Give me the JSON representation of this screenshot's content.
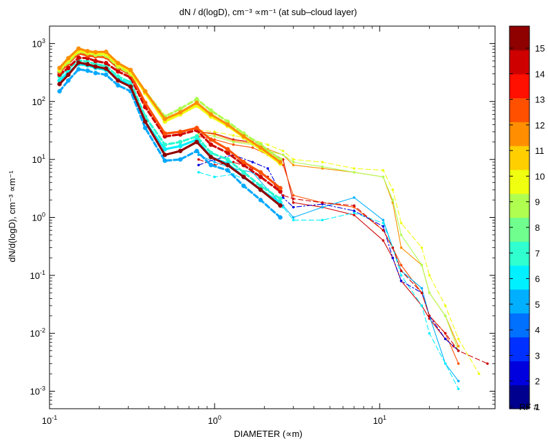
{
  "chart_data": {
    "type": "line",
    "title": "dN / d(logD), cm⁻³ ∝m⁻¹ (at sub–cloud layer)",
    "xlabel": "DIAMETER (∝m)",
    "ylabel": "dN/d(logD), cm⁻³ ∝m⁻¹",
    "xscale": "log",
    "yscale": "log",
    "xlim": [
      0.1,
      50
    ],
    "ylim": [
      0.0005,
      2000
    ],
    "xticks": [
      {
        "value": 0.1,
        "base": "10",
        "exp": "-1"
      },
      {
        "value": 1,
        "base": "10",
        "exp": "0"
      },
      {
        "value": 10,
        "base": "10",
        "exp": "1"
      }
    ],
    "yticks": [
      {
        "value": 0.001,
        "base": "10",
        "exp": "-3"
      },
      {
        "value": 0.01,
        "base": "10",
        "exp": "-2"
      },
      {
        "value": 0.1,
        "base": "10",
        "exp": "-1"
      },
      {
        "value": 1,
        "base": "10",
        "exp": "0"
      },
      {
        "value": 10,
        "base": "10",
        "exp": "1"
      },
      {
        "value": 100,
        "base": "10",
        "exp": "2"
      },
      {
        "value": 1000,
        "base": "10",
        "exp": "3"
      }
    ],
    "grid": false,
    "colorbar": {
      "label": "RF #",
      "ticks": [
        "1",
        "2",
        "3",
        "4",
        "5",
        "6",
        "7",
        "8",
        "9",
        "10",
        "11",
        "12",
        "13",
        "14",
        "15"
      ],
      "colors": [
        "#00008f",
        "#0000df",
        "#0030ff",
        "#0070ff",
        "#00b0ff",
        "#00f0ff",
        "#30ffcf",
        "#70ff8f",
        "#b0ff50",
        "#f0ff10",
        "#ffcf00",
        "#ff8f00",
        "#ff5000",
        "#ff1000",
        "#cf0000",
        "#8f0000"
      ]
    },
    "small_particle_series": [
      {
        "rf": 1,
        "color": "#00a8ff",
        "style": "dash",
        "x": [
          0.115,
          0.13,
          0.15,
          0.17,
          0.19,
          0.22,
          0.26,
          0.31,
          0.38,
          0.5,
          0.62,
          0.78,
          0.95,
          1.2,
          1.5,
          1.9,
          2.5
        ],
        "y": [
          150,
          230,
          360,
          340,
          310,
          290,
          190,
          150,
          35,
          9.5,
          10,
          14,
          8,
          6.5,
          3.5,
          2,
          1.0
        ]
      },
      {
        "rf": 2,
        "color": "#00f0ff",
        "style": "solid",
        "x": [
          0.115,
          0.13,
          0.15,
          0.17,
          0.19,
          0.22,
          0.26,
          0.31,
          0.38,
          0.5,
          0.62,
          0.78,
          0.95,
          1.2,
          1.5,
          1.9,
          2.5
        ],
        "y": [
          230,
          320,
          440,
          420,
          380,
          350,
          250,
          190,
          45,
          15,
          17,
          22,
          11,
          8.5,
          5,
          3,
          1.8
        ]
      },
      {
        "rf": 3,
        "color": "#2cfcd0",
        "style": "dash",
        "x": [
          0.115,
          0.13,
          0.15,
          0.17,
          0.19,
          0.22,
          0.26,
          0.31,
          0.38,
          0.5,
          0.62,
          0.78,
          0.95,
          1.2,
          1.5,
          1.9,
          2.5
        ],
        "y": [
          270,
          370,
          510,
          490,
          440,
          410,
          270,
          215,
          55,
          18,
          20,
          25,
          13,
          10,
          6,
          3.5,
          2.1
        ]
      },
      {
        "rf": 4,
        "color": "#8f0000",
        "style": "solid",
        "x": [
          0.115,
          0.13,
          0.15,
          0.17,
          0.19,
          0.22,
          0.26,
          0.31,
          0.38,
          0.5,
          0.62,
          0.78,
          0.95,
          1.2,
          1.5,
          1.9,
          2.5
        ],
        "y": [
          200,
          290,
          470,
          440,
          400,
          370,
          230,
          180,
          45,
          12,
          14,
          20,
          11,
          8,
          5,
          3,
          1.6
        ]
      },
      {
        "rf": 5,
        "color": "#cf0000",
        "style": "dash",
        "x": [
          0.115,
          0.13,
          0.15,
          0.17,
          0.19,
          0.22,
          0.26,
          0.31,
          0.38,
          0.5,
          0.62,
          0.78,
          0.95,
          1.2,
          1.5,
          1.9,
          2.5
        ],
        "y": [
          290,
          380,
          570,
          560,
          500,
          460,
          330,
          260,
          80,
          25,
          27,
          32,
          18,
          13,
          8,
          5,
          2.8
        ]
      },
      {
        "rf": 6,
        "color": "#ff5000",
        "style": "solid",
        "x": [
          0.115,
          0.13,
          0.15,
          0.17,
          0.19,
          0.22,
          0.26,
          0.31,
          0.38,
          0.5,
          0.62,
          0.78,
          0.95,
          1.2,
          1.5,
          1.9,
          2.5
        ],
        "y": [
          320,
          450,
          680,
          620,
          600,
          580,
          380,
          290,
          95,
          28,
          30,
          35,
          22,
          15,
          9,
          6,
          3.2
        ]
      },
      {
        "rf": 7,
        "color": "#b0ff50",
        "style": "dash",
        "x": [
          0.115,
          0.13,
          0.15,
          0.17,
          0.19,
          0.22,
          0.26,
          0.31,
          0.38,
          0.5,
          0.62,
          0.78,
          0.95,
          1.2,
          1.5,
          1.9,
          2.5
        ],
        "y": [
          340,
          480,
          720,
          680,
          640,
          620,
          400,
          300,
          150,
          55,
          75,
          110,
          70,
          45,
          28,
          18,
          10
        ]
      },
      {
        "rf": 8,
        "color": "#f0ff10",
        "style": "solid",
        "x": [
          0.115,
          0.13,
          0.15,
          0.17,
          0.19,
          0.22,
          0.26,
          0.31,
          0.38,
          0.5,
          0.62,
          0.78,
          0.95,
          1.2,
          1.5,
          1.9,
          2.5
        ],
        "y": [
          360,
          520,
          750,
          700,
          680,
          660,
          430,
          320,
          140,
          45,
          60,
          85,
          55,
          38,
          24,
          15,
          8.5
        ]
      },
      {
        "rf": 9,
        "color": "#ff8f00",
        "style": "solid",
        "x": [
          0.115,
          0.13,
          0.15,
          0.17,
          0.19,
          0.22,
          0.26,
          0.31,
          0.38,
          0.5,
          0.62,
          0.78,
          0.95,
          1.2,
          1.5,
          1.9,
          2.5
        ],
        "y": [
          380,
          560,
          820,
          740,
          710,
          720,
          460,
          350,
          150,
          50,
          65,
          95,
          60,
          40,
          25,
          16,
          9
        ]
      }
    ],
    "large_particle_series": [
      {
        "rf": 10,
        "color": "#cf0000",
        "style": "solid",
        "x": [
          0.8,
          1.0,
          1.3,
          1.7,
          2.1,
          2.6,
          3.0,
          4.5,
          7.0,
          10.5,
          12,
          13.5,
          18,
          20,
          25,
          28
        ],
        "y": [
          30,
          28,
          22,
          20,
          14,
          10,
          1.8,
          1.5,
          1.1,
          0.4,
          0.2,
          0.08,
          0.03,
          0.018,
          0.008,
          0.006
        ]
      },
      {
        "rf": 11,
        "color": "#ff5000",
        "style": "solid",
        "x": [
          0.8,
          1.0,
          1.3,
          1.7,
          2.1,
          2.6,
          3.0,
          4.5,
          7.0,
          10.5,
          12,
          13.5,
          18,
          20,
          25,
          30
        ],
        "y": [
          25,
          22,
          18,
          16,
          12,
          8,
          2.4,
          1.8,
          1.5,
          0.6,
          0.3,
          0.15,
          0.05,
          0.02,
          0.01,
          0.003
        ]
      },
      {
        "rf": 12,
        "color": "#ff8f00",
        "style": "solid",
        "x": [
          0.8,
          1.0,
          1.3,
          1.7,
          2.1,
          2.6,
          3.0,
          4.5,
          7.0,
          10.5,
          12,
          13.5,
          18,
          20,
          25,
          30
        ],
        "y": [
          30,
          27,
          21,
          19,
          15,
          12,
          8,
          7,
          6,
          5,
          1.8,
          0.3,
          0.15,
          0.05,
          0.02,
          0.006
        ]
      },
      {
        "rf": 13,
        "color": "#f0ff10",
        "style": "dash",
        "x": [
          0.8,
          1.0,
          1.3,
          1.7,
          2.1,
          2.6,
          3.0,
          4.5,
          7.0,
          10.5,
          12,
          13.5,
          18,
          20,
          25,
          30,
          40
        ],
        "y": [
          32,
          30,
          26,
          22,
          18,
          14,
          10,
          9,
          7,
          6.5,
          3,
          0.8,
          0.3,
          0.1,
          0.03,
          0.008,
          0.002
        ]
      },
      {
        "rf": 14,
        "color": "#b0ff50",
        "style": "solid",
        "x": [
          0.8,
          1.0,
          1.3,
          1.7,
          2.1,
          2.6,
          3.0,
          4.5,
          7.0,
          10.5,
          12,
          13.5,
          18,
          20,
          25,
          30
        ],
        "y": [
          28,
          25,
          20,
          18,
          14,
          12,
          9,
          7.5,
          6,
          5,
          2,
          0.5,
          0.15,
          0.05,
          0.02,
          0.005
        ]
      },
      {
        "rf": 15,
        "color": "#00b0ff",
        "style": "solid",
        "x": [
          0.8,
          1.0,
          1.3,
          1.7,
          2.1,
          2.6,
          3.0,
          4.5,
          7.0,
          10.5,
          12,
          13.5,
          18,
          20,
          25,
          30
        ],
        "y": [
          12,
          9,
          7,
          6,
          3,
          1.6,
          1.0,
          1.5,
          2.2,
          0.9,
          0.3,
          0.12,
          0.06,
          0.02,
          0.003,
          0.0015
        ]
      },
      {
        "rf": 3,
        "color": "#00f0ff",
        "style": "dash",
        "x": [
          0.8,
          1.0,
          1.3,
          1.7,
          2.1,
          2.6,
          3.0,
          4.5,
          7.0,
          10.5,
          12,
          13.5,
          18,
          20,
          25,
          30
        ],
        "y": [
          6,
          5,
          5.5,
          4,
          3,
          1.5,
          0.9,
          0.9,
          1.2,
          0.8,
          0.3,
          0.1,
          0.03,
          0.01,
          0.003,
          0.0011
        ]
      },
      {
        "rf": 2,
        "color": "#0000df",
        "style": "dashdot",
        "x": [
          0.8,
          1.0,
          1.3,
          1.7,
          2.1,
          2.6,
          3.0,
          4.5,
          7.0,
          10.5,
          12,
          13.5,
          18,
          20,
          25,
          30
        ],
        "y": [
          8,
          10,
          12,
          9,
          7,
          2.2,
          1.5,
          1.7,
          1.3,
          0.7,
          0.2,
          0.08,
          0.05,
          0.02,
          0.008,
          0.005
        ]
      },
      {
        "rf": 5,
        "color": "#cf0000",
        "style": "dash",
        "x": [
          0.8,
          1.0,
          1.3,
          1.7,
          2.1,
          2.6,
          3.0,
          4.5,
          7.0,
          10.5,
          12,
          13.5,
          18,
          20,
          25,
          30,
          45
        ],
        "y": [
          10,
          8,
          9,
          7,
          5,
          2.4,
          2.1,
          1.8,
          1.6,
          0.6,
          0.3,
          0.12,
          0.05,
          0.02,
          0.01,
          0.005,
          0.003
        ]
      }
    ]
  }
}
